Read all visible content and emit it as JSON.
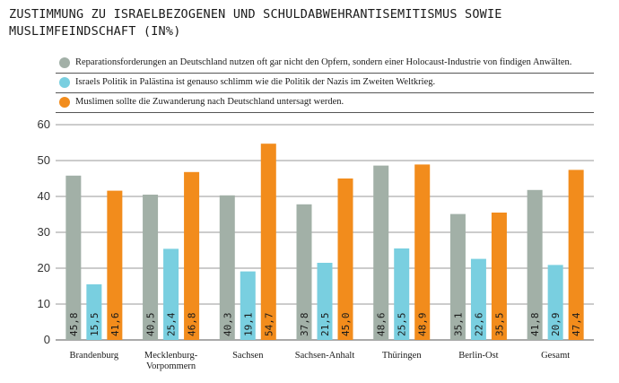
{
  "title": "ZUSTIMMUNG ZU ISRAELBEZOGENEN UND SCHULDABWEHRANTISEMITISMUS SOWIE MUSLIMFEINDSCHAFT (IN%)",
  "colors": {
    "grey": "#a2b0a7",
    "blue": "#79cfe0",
    "orange": "#f28c1c"
  },
  "chart_data": {
    "type": "bar",
    "title": "ZUSTIMMUNG ZU ISRAELBEZOGENEN UND SCHULDABWEHRANTISEMITISMUS SOWIE MUSLIMFEINDSCHAFT (IN%)",
    "categories": [
      "Brandenburg",
      "Mecklenburg-\nVorpommern",
      "Sachsen",
      "Sachsen-Anhalt",
      "Thüringen",
      "Berlin-Ost",
      "Gesamt"
    ],
    "series": [
      {
        "name": "Reparationsforderungen an Deutschland nutzen oft gar nicht den Opfern, sondern einer Holocaust-Industrie von findigen Anwälten.",
        "color": "#a2b0a7",
        "values": [
          45.8,
          40.5,
          40.3,
          37.8,
          48.6,
          35.1,
          41.8
        ]
      },
      {
        "name": "Israels Politik in Palästina ist genauso schlimm wie die Politik der Nazis im Zweiten Weltkrieg.",
        "color": "#79cfe0",
        "values": [
          15.5,
          25.4,
          19.1,
          21.5,
          25.5,
          22.6,
          20.9
        ]
      },
      {
        "name": "Muslimen sollte die Zuwanderung nach Deutschland untersagt werden.",
        "color": "#f28c1c",
        "values": [
          41.6,
          46.8,
          54.7,
          45.0,
          48.9,
          35.5,
          47.4
        ]
      }
    ],
    "value_labels": [
      [
        "45,8",
        "40,5",
        "40,3",
        "37,8",
        "48,6",
        "35,1",
        "41,8"
      ],
      [
        "15,5",
        "25,4",
        "19,1",
        "21,5",
        "25,5",
        "22,6",
        "20,9"
      ],
      [
        "41,6",
        "46,8",
        "54,7",
        "45,0",
        "48,9",
        "35,5",
        "47,4"
      ]
    ],
    "yticks": [
      "0",
      "10",
      "20",
      "30",
      "40",
      "50",
      "60"
    ],
    "ylim": [
      0,
      60
    ],
    "grid": true,
    "legend": "top"
  }
}
